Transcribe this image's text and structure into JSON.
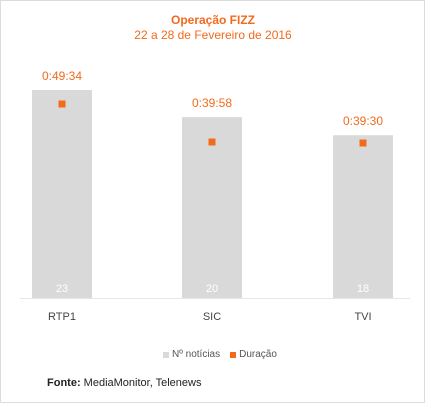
{
  "chart_data": {
    "type": "bar",
    "title": "Operação FIZZ",
    "subtitle": "22 a 28 de Fevereiro de 2016",
    "categories": [
      "RTP1",
      "SIC",
      "TVI"
    ],
    "series": [
      {
        "name": "Nº notícias",
        "type": "bar",
        "values": [
          23,
          20,
          18
        ],
        "color": "#d9d9d9"
      },
      {
        "name": "Duração",
        "type": "point",
        "values": [
          "0:49:34",
          "0:39:58",
          "0:39:30"
        ],
        "seconds": [
          2974,
          2398,
          2370
        ],
        "color": "#f26a1b"
      }
    ],
    "legend": "bottom-center",
    "grid": false
  },
  "source": {
    "label": "Fonte:",
    "text": "MediaMonitor, Telenews"
  }
}
